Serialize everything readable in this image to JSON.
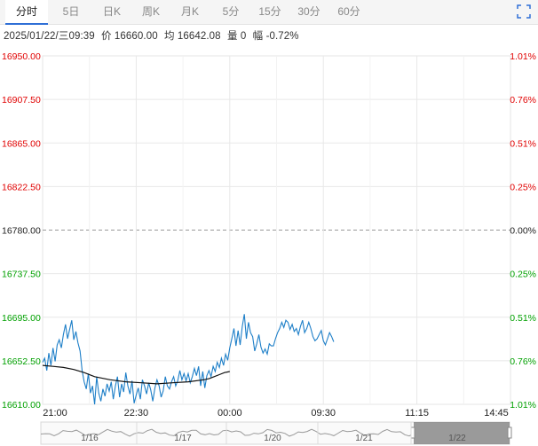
{
  "tabs": [
    {
      "label": "分时",
      "active": true
    },
    {
      "label": "5日",
      "active": false
    },
    {
      "label": "日K",
      "active": false
    },
    {
      "label": "周K",
      "active": false
    },
    {
      "label": "月K",
      "active": false
    },
    {
      "label": "5分",
      "active": false
    },
    {
      "label": "15分",
      "active": false
    },
    {
      "label": "30分",
      "active": false
    },
    {
      "label": "60分",
      "active": false
    }
  ],
  "fullscreen_icon": "expand-corners-icon",
  "info": {
    "datetime": "2025/01/22/三09:39",
    "price": "价 16660.00",
    "avg": "均 16642.08",
    "volume": "量 0",
    "change": "幅 -0.72%"
  },
  "colors": {
    "up": "#e00000",
    "down": "#00a000",
    "flat": "#222222",
    "price_line": "#1e7fc8",
    "avg_line": "#111111",
    "grid": "#e8e8e8",
    "baseline": "#999999"
  },
  "chart_data": {
    "type": "line",
    "y_left_ticks": [
      "16950.00",
      "16907.50",
      "16865.00",
      "16822.50",
      "16780.00",
      "16737.50",
      "16695.00",
      "16652.50",
      "16610.00"
    ],
    "y_right_ticks": [
      "1.01%",
      "0.76%",
      "0.51%",
      "0.25%",
      "0.00%",
      "0.25%",
      "0.51%",
      "0.76%",
      "1.01%"
    ],
    "ylim": [
      16610.0,
      16950.0
    ],
    "prev_close": 16780.0,
    "x_ticks": [
      "21:00",
      "22:30",
      "00:00",
      "09:30",
      "11:15",
      "14:45"
    ],
    "session_minutes": 900,
    "series": [
      {
        "key": "price",
        "minutes": [
          0,
          4,
          8,
          12,
          16,
          20,
          24,
          28,
          32,
          36,
          40,
          44,
          48,
          52,
          56,
          60,
          64,
          68,
          72,
          76,
          80,
          84,
          88,
          92,
          96,
          100,
          104,
          108,
          112,
          116,
          120,
          124,
          128,
          132,
          136,
          140,
          144,
          148,
          152,
          156,
          160,
          164,
          168,
          172,
          176,
          180,
          184,
          188,
          192,
          196,
          200,
          204,
          208,
          212,
          216,
          220,
          224,
          228,
          232,
          236,
          240,
          244,
          248,
          252,
          256,
          260,
          264,
          268,
          272,
          276,
          280,
          284,
          288,
          292,
          296,
          300,
          304,
          308,
          312,
          316,
          320,
          324,
          328,
          332,
          336,
          340,
          344,
          348,
          352,
          356,
          360,
          364,
          368,
          372,
          376,
          380,
          384,
          388,
          392,
          396,
          400,
          404,
          408,
          412,
          416,
          420,
          424,
          428,
          432,
          436,
          440,
          444,
          448,
          452,
          456,
          460,
          464,
          468,
          472,
          476,
          480,
          484,
          488,
          492,
          496,
          500,
          504,
          508,
          512,
          516,
          520,
          524,
          528,
          532,
          536,
          540,
          544,
          548,
          552,
          556,
          560
        ],
        "values": [
          16651,
          16655,
          16643,
          16660,
          16648,
          16665,
          16652,
          16668,
          16673,
          16665,
          16678,
          16688,
          16674,
          16683,
          16692,
          16673,
          16681,
          16670,
          16662,
          16643,
          16632,
          16625,
          16640,
          16621,
          16628,
          16610,
          16637,
          16621,
          16613,
          16625,
          16618,
          16630,
          16623,
          16632,
          16615,
          16628,
          16637,
          16617,
          16630,
          16622,
          16641,
          16628,
          16620,
          16633,
          16611,
          16619,
          16626,
          16615,
          16634,
          16628,
          16620,
          16631,
          16624,
          16613,
          16626,
          16634,
          16628,
          16617,
          16623,
          16637,
          16628,
          16625,
          16632,
          16637,
          16628,
          16633,
          16643,
          16634,
          16640,
          16633,
          16640,
          16631,
          16637,
          16645,
          16638,
          16647,
          16628,
          16642,
          16626,
          16638,
          16643,
          16637,
          16647,
          16642,
          16651,
          16646,
          16655,
          16648,
          16659,
          16653,
          16665,
          16674,
          16684,
          16667,
          16682,
          16668,
          16686,
          16698,
          16674,
          16690,
          16680,
          16676,
          16662,
          16669,
          16678,
          16666,
          16660,
          16664,
          16659,
          16669,
          16667,
          16667,
          16674,
          16680,
          16684,
          16690,
          16685,
          16692,
          16690,
          16683,
          16688,
          16681,
          16684,
          16678,
          16686,
          16692,
          16680,
          16684,
          16690,
          16684,
          16676,
          16672,
          16674,
          16678,
          16682,
          16672,
          16668,
          16674,
          16680,
          16676,
          16671
        ]
      },
      {
        "key": "avg",
        "minutes": [
          0,
          20,
          40,
          60,
          80,
          100,
          130,
          160,
          190,
          220,
          250,
          280,
          310,
          320,
          330,
          340,
          350,
          360
        ],
        "values": [
          16648,
          16647,
          16646,
          16644,
          16641,
          16637,
          16634,
          16632,
          16631,
          16630,
          16631,
          16632,
          16634,
          16635,
          16637,
          16639,
          16641,
          16642
        ]
      }
    ],
    "navigator": {
      "labels": [
        "1/16",
        "1/17",
        "1/20",
        "1/21",
        "1/22"
      ],
      "selected_label": "1/22"
    }
  }
}
